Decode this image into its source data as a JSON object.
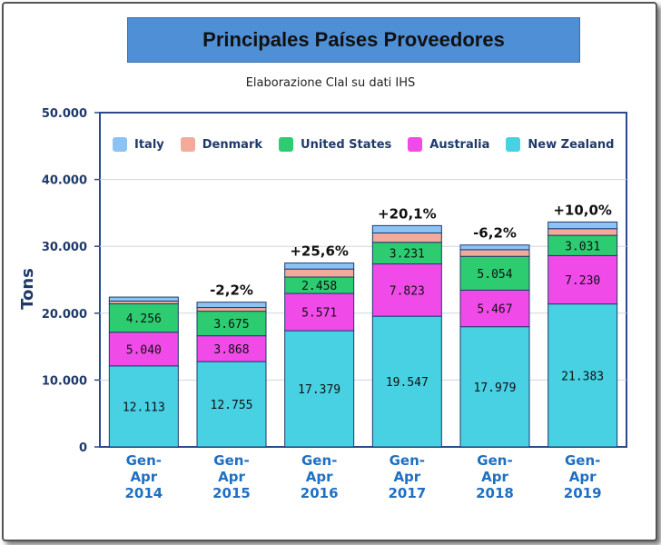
{
  "title": "Principales Países Proveedores",
  "subtitle": "Elaborazione Clal su dati IHS",
  "chart_data": {
    "type": "bar",
    "stacked": true,
    "categories": [
      "Gen-\nApr\n2014",
      "Gen-\nApr\n2015",
      "Gen-\nApr\n2016",
      "Gen-\nApr\n2017",
      "Gen-\nApr\n2018",
      "Gen-\nApr\n2019"
    ],
    "category_lines": [
      [
        "Gen-",
        "Apr",
        "2014"
      ],
      [
        "Gen-",
        "Apr",
        "2015"
      ],
      [
        "Gen-",
        "Apr",
        "2016"
      ],
      [
        "Gen-",
        "Apr",
        "2017"
      ],
      [
        "Gen-",
        "Apr",
        "2018"
      ],
      [
        "Gen-",
        "Apr",
        "2019"
      ]
    ],
    "ylabel": "Tons",
    "ylim": [
      0,
      50000
    ],
    "yticks": [
      0,
      10000,
      20000,
      30000,
      40000,
      50000
    ],
    "ytick_labels": [
      "0",
      "10.000",
      "20.000",
      "30.000",
      "40.000",
      "50.000"
    ],
    "legend_position": "top",
    "series": [
      {
        "name": "New Zealand",
        "color": "#48d1e3",
        "values": [
          12113,
          12755,
          17379,
          19547,
          17979,
          21383
        ],
        "labels": [
          "12.113",
          "12.755",
          "17.379",
          "19.547",
          "17.979",
          "21.383"
        ]
      },
      {
        "name": "Australia",
        "color": "#f04be8",
        "values": [
          5040,
          3868,
          5571,
          7823,
          5467,
          7230
        ],
        "labels": [
          "5.040",
          "3.868",
          "5.571",
          "7.823",
          "5.467",
          "7.230"
        ]
      },
      {
        "name": "United States",
        "color": "#2ecc71",
        "values": [
          4256,
          3675,
          2458,
          3231,
          5054,
          3031
        ],
        "labels": [
          "4.256",
          "3.675",
          "2.458",
          "3.231",
          "5.054",
          "3.031"
        ]
      },
      {
        "name": "Denmark",
        "color": "#f2ab9a",
        "values": [
          400,
          550,
          1200,
          1400,
          1000,
          1000
        ],
        "labels": [
          "",
          "",
          "",
          "",
          "",
          ""
        ]
      },
      {
        "name": "Italy",
        "color": "#8cc3f5",
        "values": [
          600,
          800,
          900,
          1100,
          700,
          1000
        ],
        "labels": [
          "",
          "",
          "",
          "",
          "",
          ""
        ]
      }
    ],
    "legend_order": [
      "Italy",
      "Denmark",
      "United States",
      "Australia",
      "New Zealand"
    ],
    "annotations": [
      "",
      "-2,2%",
      "+25,6%",
      "+20,1%",
      "-6,2%",
      "+10,0%"
    ],
    "grid": true
  }
}
